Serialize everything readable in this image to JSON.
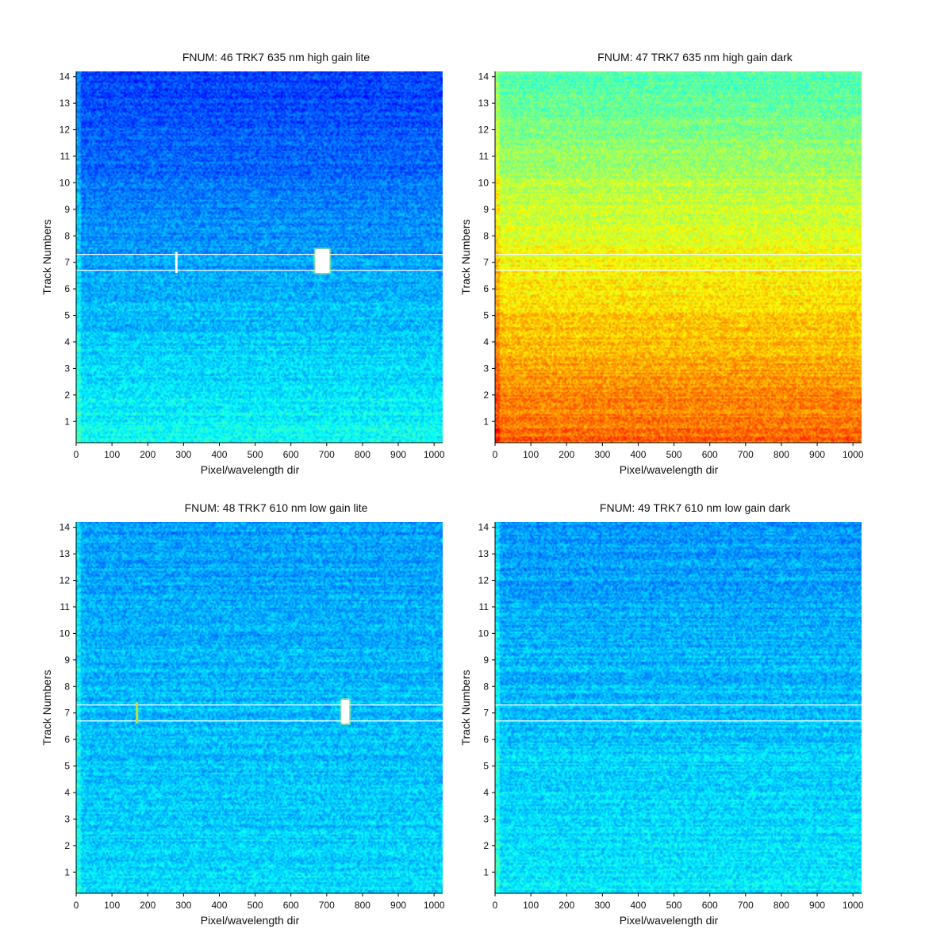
{
  "figure": {
    "panels": [
      {
        "title": "FNUM: 46 TRK7 635 nm high gain lite",
        "xlabel": "Pixel/wavelength dir",
        "ylabel": "Track Numbers"
      },
      {
        "title": "FNUM: 47 TRK7 635 nm high gain dark",
        "xlabel": "Pixel/wavelength dir",
        "ylabel": "Track Numbers"
      },
      {
        "title": "FNUM: 48 TRK7 610 nm low gain lite",
        "xlabel": "Pixel/wavelength dir",
        "ylabel": "Track Numbers"
      },
      {
        "title": "FNUM: 49 TRK7 610 nm low gain dark",
        "xlabel": "Pixel/wavelength dir",
        "ylabel": "Track Numbers"
      }
    ]
  },
  "chart_data": [
    {
      "type": "heatmap",
      "title": "FNUM: 46 TRK7 635 nm high gain lite",
      "xlabel": "Pixel/wavelength dir",
      "ylabel": "Track Numbers",
      "xlim": [
        0,
        1024
      ],
      "ylim": [
        0.2,
        14.2
      ],
      "xticks": [
        0,
        100,
        200,
        300,
        400,
        500,
        600,
        700,
        800,
        900,
        1000
      ],
      "yticks": [
        1,
        2,
        3,
        4,
        5,
        6,
        7,
        8,
        9,
        10,
        11,
        12,
        13,
        14
      ],
      "colormap": "jet",
      "background_gradient": {
        "top": 0.18,
        "bottom": 0.38
      },
      "track_boundaries": [
        6.7,
        7.3
      ],
      "spots": [
        {
          "x": 280,
          "y_range": [
            6.6,
            7.4
          ],
          "intensity": 0.95,
          "width": 3
        },
        {
          "x": 688,
          "y_range": [
            6.6,
            7.5
          ],
          "intensity": 1.0,
          "width": 18
        }
      ]
    },
    {
      "type": "heatmap",
      "title": "FNUM: 47 TRK7 635 nm high gain dark",
      "xlabel": "Pixel/wavelength dir",
      "ylabel": "Track Numbers",
      "xlim": [
        0,
        1024
      ],
      "ylim": [
        0.2,
        14.2
      ],
      "xticks": [
        0,
        100,
        200,
        300,
        400,
        500,
        600,
        700,
        800,
        900,
        1000
      ],
      "yticks": [
        1,
        2,
        3,
        4,
        5,
        6,
        7,
        8,
        9,
        10,
        11,
        12,
        13,
        14
      ],
      "colormap": "jet",
      "background_gradient": {
        "top": 0.45,
        "bottom": 0.78
      },
      "track_boundaries": [
        6.7,
        7.3
      ],
      "spots": []
    },
    {
      "type": "heatmap",
      "title": "FNUM: 48 TRK7 610 nm low gain lite",
      "xlabel": "Pixel/wavelength dir",
      "ylabel": "Track Numbers",
      "xlim": [
        0,
        1024
      ],
      "ylim": [
        0.2,
        14.2
      ],
      "xticks": [
        0,
        100,
        200,
        300,
        400,
        500,
        600,
        700,
        800,
        900,
        1000
      ],
      "yticks": [
        1,
        2,
        3,
        4,
        5,
        6,
        7,
        8,
        9,
        10,
        11,
        12,
        13,
        14
      ],
      "colormap": "jet",
      "background_gradient": {
        "top": 0.28,
        "bottom": 0.34
      },
      "track_boundaries": [
        6.7,
        7.3
      ],
      "spots": [
        {
          "x": 170,
          "y_range": [
            6.6,
            7.4
          ],
          "intensity": 0.65,
          "width": 3
        },
        {
          "x": 752,
          "y_range": [
            6.6,
            7.5
          ],
          "intensity": 1.0,
          "width": 10
        }
      ]
    },
    {
      "type": "heatmap",
      "title": "FNUM: 49 TRK7 610 nm low gain dark",
      "xlabel": "Pixel/wavelength dir",
      "ylabel": "Track Numbers",
      "xlim": [
        0,
        1024
      ],
      "ylim": [
        0.2,
        14.2
      ],
      "xticks": [
        0,
        100,
        200,
        300,
        400,
        500,
        600,
        700,
        800,
        900,
        1000
      ],
      "yticks": [
        1,
        2,
        3,
        4,
        5,
        6,
        7,
        8,
        9,
        10,
        11,
        12,
        13,
        14
      ],
      "colormap": "jet",
      "background_gradient": {
        "top": 0.27,
        "bottom": 0.36
      },
      "track_boundaries": [
        6.7,
        7.3
      ],
      "spots": []
    }
  ]
}
